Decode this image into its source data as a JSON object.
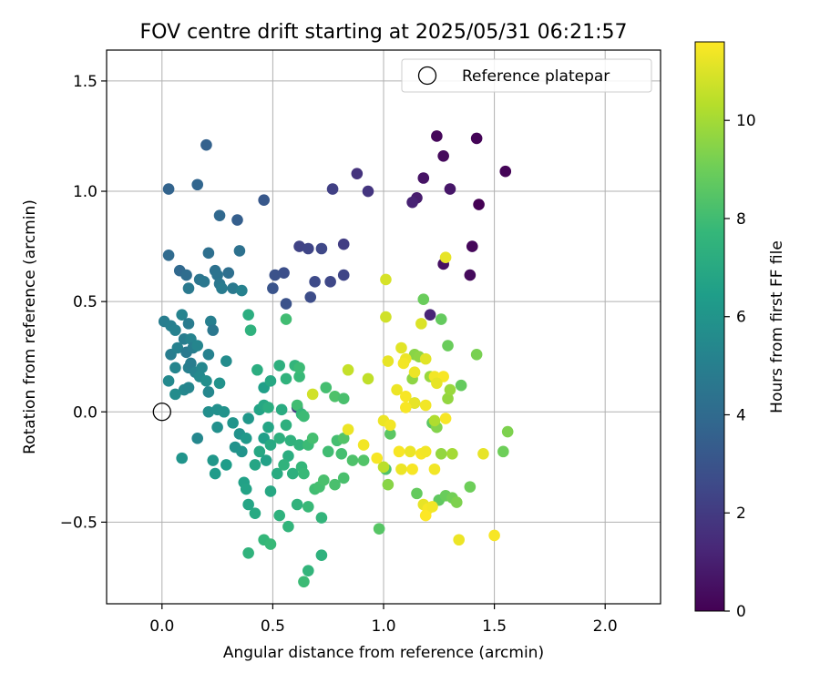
{
  "chart_data": {
    "type": "scatter",
    "title": "FOV centre drift starting at 2025/05/31 06:21:57",
    "xlabel": "Angular distance from reference (arcmin)",
    "ylabel": "Rotation from reference (arcmin)",
    "xlim": [
      -0.25,
      2.25
    ],
    "ylim": [
      -0.87,
      1.64
    ],
    "xticks": [
      0.0,
      0.5,
      1.0,
      1.5,
      2.0
    ],
    "xtick_labels": [
      "0.0",
      "0.5",
      "1.0",
      "1.5",
      "2.0"
    ],
    "yticks": [
      -0.5,
      0.0,
      0.5,
      1.0,
      1.5
    ],
    "ytick_labels": [
      "−0.5",
      "0.0",
      "0.5",
      "1.0",
      "1.5"
    ],
    "grid": true,
    "legend": {
      "placement": "top-right",
      "entries": [
        "Reference platepar"
      ]
    },
    "reference_point": {
      "x": 0.0,
      "y": 0.0,
      "label": "Reference platepar",
      "marker": "open-circle"
    },
    "colorbar": {
      "label": "Hours from first FF file",
      "colormap": "viridis",
      "range": [
        0,
        11.6
      ],
      "ticks": [
        0,
        2,
        4,
        6,
        8,
        10
      ],
      "tick_labels": [
        "0",
        "2",
        "4",
        "6",
        "8",
        "10"
      ]
    },
    "points": [
      {
        "x": 1.24,
        "y": 1.25,
        "h": 0.2
      },
      {
        "x": 1.42,
        "y": 1.24,
        "h": 0.1
      },
      {
        "x": 1.27,
        "y": 1.16,
        "h": 0.3
      },
      {
        "x": 1.55,
        "y": 1.09,
        "h": 0.1
      },
      {
        "x": 1.18,
        "y": 1.06,
        "h": 0.6
      },
      {
        "x": 1.3,
        "y": 1.01,
        "h": 0.7
      },
      {
        "x": 1.15,
        "y": 0.97,
        "h": 0.9
      },
      {
        "x": 1.13,
        "y": 0.95,
        "h": 1.1
      },
      {
        "x": 1.43,
        "y": 0.94,
        "h": 0.0
      },
      {
        "x": 1.4,
        "y": 0.75,
        "h": 0.2
      },
      {
        "x": 1.27,
        "y": 0.67,
        "h": 0.5
      },
      {
        "x": 1.39,
        "y": 0.62,
        "h": 0.3
      },
      {
        "x": 1.21,
        "y": 0.44,
        "h": 1.2
      },
      {
        "x": 0.88,
        "y": 1.08,
        "h": 1.7
      },
      {
        "x": 0.93,
        "y": 1.0,
        "h": 1.8
      },
      {
        "x": 0.77,
        "y": 1.01,
        "h": 2.2
      },
      {
        "x": 0.62,
        "y": 0.75,
        "h": 2.3
      },
      {
        "x": 0.66,
        "y": 0.74,
        "h": 2.4
      },
      {
        "x": 0.72,
        "y": 0.74,
        "h": 2.5
      },
      {
        "x": 0.82,
        "y": 0.76,
        "h": 2.1
      },
      {
        "x": 0.55,
        "y": 0.63,
        "h": 2.8
      },
      {
        "x": 0.51,
        "y": 0.62,
        "h": 2.9
      },
      {
        "x": 0.5,
        "y": 0.56,
        "h": 3.0
      },
      {
        "x": 0.69,
        "y": 0.59,
        "h": 2.6
      },
      {
        "x": 0.76,
        "y": 0.59,
        "h": 2.5
      },
      {
        "x": 0.82,
        "y": 0.62,
        "h": 2.4
      },
      {
        "x": 0.56,
        "y": 0.49,
        "h": 2.9
      },
      {
        "x": 0.67,
        "y": 0.52,
        "h": 2.7
      },
      {
        "x": 0.61,
        "y": 0.02,
        "h": 2.0
      },
      {
        "x": 0.2,
        "y": 1.21,
        "h": 3.6
      },
      {
        "x": 0.03,
        "y": 1.01,
        "h": 3.7
      },
      {
        "x": 0.16,
        "y": 1.03,
        "h": 3.8
      },
      {
        "x": 0.46,
        "y": 0.96,
        "h": 3.2
      },
      {
        "x": 0.26,
        "y": 0.89,
        "h": 3.9
      },
      {
        "x": 0.34,
        "y": 0.87,
        "h": 3.5
      },
      {
        "x": 0.03,
        "y": 0.71,
        "h": 4.0
      },
      {
        "x": 0.21,
        "y": 0.72,
        "h": 4.2
      },
      {
        "x": 0.35,
        "y": 0.73,
        "h": 4.3
      },
      {
        "x": 0.08,
        "y": 0.64,
        "h": 3.9
      },
      {
        "x": 0.11,
        "y": 0.62,
        "h": 4.1
      },
      {
        "x": 0.17,
        "y": 0.6,
        "h": 4.5
      },
      {
        "x": 0.19,
        "y": 0.59,
        "h": 4.6
      },
      {
        "x": 0.24,
        "y": 0.64,
        "h": 4.3
      },
      {
        "x": 0.25,
        "y": 0.62,
        "h": 4.4
      },
      {
        "x": 0.3,
        "y": 0.63,
        "h": 4.2
      },
      {
        "x": 0.26,
        "y": 0.58,
        "h": 4.6
      },
      {
        "x": 0.12,
        "y": 0.56,
        "h": 4.7
      },
      {
        "x": 0.27,
        "y": 0.56,
        "h": 4.8
      },
      {
        "x": 0.32,
        "y": 0.56,
        "h": 4.7
      },
      {
        "x": 0.36,
        "y": 0.55,
        "h": 5.1
      },
      {
        "x": 0.01,
        "y": 0.41,
        "h": 4.9
      },
      {
        "x": 0.04,
        "y": 0.39,
        "h": 5.0
      },
      {
        "x": 0.06,
        "y": 0.37,
        "h": 5.1
      },
      {
        "x": 0.09,
        "y": 0.44,
        "h": 5.2
      },
      {
        "x": 0.12,
        "y": 0.4,
        "h": 4.8
      },
      {
        "x": 0.22,
        "y": 0.41,
        "h": 5.0
      },
      {
        "x": 0.23,
        "y": 0.37,
        "h": 4.6
      },
      {
        "x": 0.04,
        "y": 0.26,
        "h": 4.9
      },
      {
        "x": 0.07,
        "y": 0.29,
        "h": 5.1
      },
      {
        "x": 0.1,
        "y": 0.33,
        "h": 4.9
      },
      {
        "x": 0.11,
        "y": 0.27,
        "h": 4.7
      },
      {
        "x": 0.13,
        "y": 0.33,
        "h": 5.2
      },
      {
        "x": 0.14,
        "y": 0.29,
        "h": 4.9
      },
      {
        "x": 0.16,
        "y": 0.3,
        "h": 5.3
      },
      {
        "x": 0.21,
        "y": 0.26,
        "h": 5.1
      },
      {
        "x": 0.06,
        "y": 0.2,
        "h": 5.3
      },
      {
        "x": 0.12,
        "y": 0.2,
        "h": 5.0
      },
      {
        "x": 0.13,
        "y": 0.22,
        "h": 4.9
      },
      {
        "x": 0.15,
        "y": 0.18,
        "h": 5.2
      },
      {
        "x": 0.18,
        "y": 0.2,
        "h": 5.4
      },
      {
        "x": 0.03,
        "y": 0.14,
        "h": 5.5
      },
      {
        "x": 0.1,
        "y": 0.1,
        "h": 5.4
      },
      {
        "x": 0.12,
        "y": 0.11,
        "h": 5.3
      },
      {
        "x": 0.17,
        "y": 0.16,
        "h": 5.5
      },
      {
        "x": 0.2,
        "y": 0.14,
        "h": 5.7
      },
      {
        "x": 0.06,
        "y": 0.08,
        "h": 5.6
      },
      {
        "x": 0.21,
        "y": 0.09,
        "h": 5.4
      },
      {
        "x": 0.29,
        "y": 0.23,
        "h": 5.6
      },
      {
        "x": 0.26,
        "y": 0.13,
        "h": 5.9
      },
      {
        "x": 0.21,
        "y": 0.0,
        "h": 5.7
      },
      {
        "x": 0.25,
        "y": 0.01,
        "h": 5.8
      },
      {
        "x": 0.28,
        "y": 0.0,
        "h": 5.9
      },
      {
        "x": 0.09,
        "y": -0.21,
        "h": 6.0
      },
      {
        "x": 0.16,
        "y": -0.12,
        "h": 5.4
      },
      {
        "x": 0.25,
        "y": -0.07,
        "h": 5.8
      },
      {
        "x": 0.32,
        "y": -0.05,
        "h": 6.0
      },
      {
        "x": 0.35,
        "y": -0.1,
        "h": 5.9
      },
      {
        "x": 0.39,
        "y": -0.03,
        "h": 6.1
      },
      {
        "x": 0.33,
        "y": -0.16,
        "h": 5.9
      },
      {
        "x": 0.36,
        "y": -0.18,
        "h": 6.0
      },
      {
        "x": 0.38,
        "y": -0.12,
        "h": 6.2
      },
      {
        "x": 0.23,
        "y": -0.22,
        "h": 6.1
      },
      {
        "x": 0.24,
        "y": -0.28,
        "h": 6.3
      },
      {
        "x": 0.29,
        "y": -0.24,
        "h": 6.4
      },
      {
        "x": 0.37,
        "y": -0.32,
        "h": 6.6
      },
      {
        "x": 0.38,
        "y": -0.35,
        "h": 6.7
      },
      {
        "x": 0.39,
        "y": -0.42,
        "h": 6.8
      },
      {
        "x": 0.42,
        "y": -0.46,
        "h": 7.0
      },
      {
        "x": 0.42,
        "y": -0.24,
        "h": 6.8
      },
      {
        "x": 0.44,
        "y": -0.18,
        "h": 6.9
      },
      {
        "x": 0.46,
        "y": -0.12,
        "h": 6.5
      },
      {
        "x": 0.48,
        "y": -0.07,
        "h": 6.8
      },
      {
        "x": 0.49,
        "y": -0.15,
        "h": 7.0
      },
      {
        "x": 0.47,
        "y": -0.22,
        "h": 6.6
      },
      {
        "x": 0.49,
        "y": -0.36,
        "h": 6.9
      },
      {
        "x": 0.52,
        "y": -0.28,
        "h": 7.1
      },
      {
        "x": 0.53,
        "y": -0.12,
        "h": 7.3
      },
      {
        "x": 0.44,
        "y": 0.01,
        "h": 6.7
      },
      {
        "x": 0.46,
        "y": 0.03,
        "h": 6.9
      },
      {
        "x": 0.48,
        "y": 0.02,
        "h": 7.2
      },
      {
        "x": 0.46,
        "y": 0.11,
        "h": 6.5
      },
      {
        "x": 0.49,
        "y": 0.14,
        "h": 6.9
      },
      {
        "x": 0.43,
        "y": 0.19,
        "h": 7.2
      },
      {
        "x": 0.53,
        "y": 0.21,
        "h": 7.3
      },
      {
        "x": 0.54,
        "y": 0.01,
        "h": 7.1
      },
      {
        "x": 0.56,
        "y": -0.06,
        "h": 7.3
      },
      {
        "x": 0.58,
        "y": -0.13,
        "h": 7.4
      },
      {
        "x": 0.57,
        "y": -0.2,
        "h": 7.2
      },
      {
        "x": 0.55,
        "y": -0.24,
        "h": 7.5
      },
      {
        "x": 0.59,
        "y": -0.28,
        "h": 7.3
      },
      {
        "x": 0.61,
        "y": -0.42,
        "h": 7.5
      },
      {
        "x": 0.53,
        "y": -0.47,
        "h": 7.4
      },
      {
        "x": 0.57,
        "y": -0.52,
        "h": 7.6
      },
      {
        "x": 0.46,
        "y": -0.58,
        "h": 7.7
      },
      {
        "x": 0.49,
        "y": -0.6,
        "h": 7.8
      },
      {
        "x": 0.39,
        "y": -0.64,
        "h": 7.5
      },
      {
        "x": 0.66,
        "y": -0.72,
        "h": 7.6
      },
      {
        "x": 0.64,
        "y": -0.77,
        "h": 7.9
      },
      {
        "x": 0.72,
        "y": -0.65,
        "h": 7.4
      },
      {
        "x": 0.72,
        "y": -0.48,
        "h": 7.6
      },
      {
        "x": 0.66,
        "y": -0.43,
        "h": 7.8
      },
      {
        "x": 0.62,
        "y": -0.15,
        "h": 7.5
      },
      {
        "x": 0.63,
        "y": -0.25,
        "h": 7.7
      },
      {
        "x": 0.64,
        "y": -0.28,
        "h": 7.8
      },
      {
        "x": 0.6,
        "y": 0.21,
        "h": 7.6
      },
      {
        "x": 0.62,
        "y": 0.16,
        "h": 7.8
      },
      {
        "x": 0.56,
        "y": 0.15,
        "h": 7.5
      },
      {
        "x": 0.62,
        "y": 0.2,
        "h": 7.9
      },
      {
        "x": 0.61,
        "y": 0.03,
        "h": 8.0
      },
      {
        "x": 0.63,
        "y": -0.01,
        "h": 7.7
      },
      {
        "x": 0.64,
        "y": -0.02,
        "h": 7.9
      },
      {
        "x": 0.56,
        "y": 0.42,
        "h": 8.0
      },
      {
        "x": 0.39,
        "y": 0.44,
        "h": 7.2
      },
      {
        "x": 0.4,
        "y": 0.37,
        "h": 7.4
      },
      {
        "x": 0.66,
        "y": -0.15,
        "h": 7.9
      },
      {
        "x": 0.68,
        "y": -0.12,
        "h": 8.1
      },
      {
        "x": 0.69,
        "y": -0.35,
        "h": 8.0
      },
      {
        "x": 0.71,
        "y": -0.34,
        "h": 8.1
      },
      {
        "x": 0.73,
        "y": -0.31,
        "h": 8.2
      },
      {
        "x": 0.75,
        "y": -0.18,
        "h": 8.0
      },
      {
        "x": 0.79,
        "y": -0.13,
        "h": 8.1
      },
      {
        "x": 0.78,
        "y": -0.33,
        "h": 8.2
      },
      {
        "x": 0.81,
        "y": -0.19,
        "h": 8.1
      },
      {
        "x": 0.82,
        "y": -0.3,
        "h": 8.2
      },
      {
        "x": 0.86,
        "y": -0.22,
        "h": 8.3
      },
      {
        "x": 0.82,
        "y": -0.12,
        "h": 8.4
      },
      {
        "x": 0.74,
        "y": 0.11,
        "h": 8.1
      },
      {
        "x": 0.78,
        "y": 0.07,
        "h": 8.3
      },
      {
        "x": 0.82,
        "y": 0.06,
        "h": 8.2
      },
      {
        "x": 0.91,
        "y": -0.22,
        "h": 8.4
      },
      {
        "x": 0.98,
        "y": -0.53,
        "h": 8.5
      },
      {
        "x": 1.01,
        "y": -0.26,
        "h": 8.3
      },
      {
        "x": 1.03,
        "y": -0.1,
        "h": 8.6
      },
      {
        "x": 1.14,
        "y": 0.04,
        "h": 8.5
      },
      {
        "x": 1.22,
        "y": -0.05,
        "h": 8.6
      },
      {
        "x": 1.25,
        "y": -0.4,
        "h": 8.7
      },
      {
        "x": 1.28,
        "y": -0.38,
        "h": 8.9
      },
      {
        "x": 1.15,
        "y": -0.37,
        "h": 8.8
      },
      {
        "x": 1.18,
        "y": 0.51,
        "h": 8.9
      },
      {
        "x": 1.26,
        "y": 0.42,
        "h": 8.8
      },
      {
        "x": 1.29,
        "y": 0.3,
        "h": 8.9
      },
      {
        "x": 1.35,
        "y": 0.12,
        "h": 8.8
      },
      {
        "x": 1.42,
        "y": 0.26,
        "h": 9.2
      },
      {
        "x": 1.39,
        "y": -0.34,
        "h": 9.0
      },
      {
        "x": 1.31,
        "y": -0.39,
        "h": 9.1
      },
      {
        "x": 1.33,
        "y": -0.41,
        "h": 9.3
      },
      {
        "x": 1.54,
        "y": -0.18,
        "h": 9.0
      },
      {
        "x": 1.56,
        "y": -0.09,
        "h": 9.3
      },
      {
        "x": 1.14,
        "y": 0.26,
        "h": 9.5
      },
      {
        "x": 1.16,
        "y": 0.25,
        "h": 9.6
      },
      {
        "x": 1.13,
        "y": 0.15,
        "h": 9.6
      },
      {
        "x": 1.24,
        "y": -0.07,
        "h": 9.4
      },
      {
        "x": 1.02,
        "y": -0.33,
        "h": 9.5
      },
      {
        "x": 1.26,
        "y": -0.19,
        "h": 9.7
      },
      {
        "x": 1.21,
        "y": 0.16,
        "h": 9.8
      },
      {
        "x": 1.29,
        "y": 0.06,
        "h": 9.7
      },
      {
        "x": 1.3,
        "y": 0.1,
        "h": 9.8
      },
      {
        "x": 1.23,
        "y": -0.04,
        "h": 10.2
      },
      {
        "x": 1.31,
        "y": -0.19,
        "h": 10.0
      },
      {
        "x": 1.0,
        "y": -0.25,
        "h": 10.4
      },
      {
        "x": 0.93,
        "y": 0.15,
        "h": 10.5
      },
      {
        "x": 0.84,
        "y": 0.19,
        "h": 10.6
      },
      {
        "x": 0.68,
        "y": 0.08,
        "h": 10.8
      },
      {
        "x": 1.01,
        "y": 0.43,
        "h": 10.8
      },
      {
        "x": 1.01,
        "y": 0.6,
        "h": 10.9
      },
      {
        "x": 1.28,
        "y": 0.7,
        "h": 11.2
      },
      {
        "x": 1.17,
        "y": 0.4,
        "h": 11.0
      },
      {
        "x": 1.08,
        "y": 0.29,
        "h": 11.1
      },
      {
        "x": 1.1,
        "y": 0.24,
        "h": 11.3
      },
      {
        "x": 1.19,
        "y": 0.24,
        "h": 11.1
      },
      {
        "x": 1.02,
        "y": 0.23,
        "h": 11.2
      },
      {
        "x": 1.09,
        "y": 0.22,
        "h": 11.4
      },
      {
        "x": 1.14,
        "y": 0.18,
        "h": 11.3
      },
      {
        "x": 1.23,
        "y": 0.16,
        "h": 11.4
      },
      {
        "x": 1.27,
        "y": 0.16,
        "h": 11.5
      },
      {
        "x": 1.24,
        "y": 0.13,
        "h": 11.2
      },
      {
        "x": 1.06,
        "y": 0.1,
        "h": 11.3
      },
      {
        "x": 1.1,
        "y": 0.07,
        "h": 11.5
      },
      {
        "x": 1.14,
        "y": 0.04,
        "h": 11.2
      },
      {
        "x": 1.19,
        "y": 0.03,
        "h": 11.4
      },
      {
        "x": 1.1,
        "y": 0.02,
        "h": 11.5
      },
      {
        "x": 1.0,
        "y": -0.04,
        "h": 11.3
      },
      {
        "x": 1.03,
        "y": -0.06,
        "h": 11.4
      },
      {
        "x": 1.28,
        "y": -0.03,
        "h": 11.5
      },
      {
        "x": 0.84,
        "y": -0.08,
        "h": 11.3
      },
      {
        "x": 0.91,
        "y": -0.15,
        "h": 11.4
      },
      {
        "x": 1.07,
        "y": -0.18,
        "h": 11.5
      },
      {
        "x": 1.12,
        "y": -0.18,
        "h": 11.3
      },
      {
        "x": 1.17,
        "y": -0.19,
        "h": 11.5
      },
      {
        "x": 1.19,
        "y": -0.18,
        "h": 11.4
      },
      {
        "x": 0.97,
        "y": -0.21,
        "h": 11.5
      },
      {
        "x": 1.08,
        "y": -0.26,
        "h": 11.3
      },
      {
        "x": 1.23,
        "y": -0.26,
        "h": 11.4
      },
      {
        "x": 1.13,
        "y": -0.26,
        "h": 11.5
      },
      {
        "x": 1.18,
        "y": -0.42,
        "h": 11.2
      },
      {
        "x": 1.2,
        "y": -0.44,
        "h": 11.5
      },
      {
        "x": 1.19,
        "y": -0.47,
        "h": 11.6
      },
      {
        "x": 1.22,
        "y": -0.43,
        "h": 11.4
      },
      {
        "x": 1.34,
        "y": -0.58,
        "h": 11.3
      },
      {
        "x": 1.5,
        "y": -0.56,
        "h": 11.5
      },
      {
        "x": 1.45,
        "y": -0.19,
        "h": 11.2
      }
    ]
  }
}
